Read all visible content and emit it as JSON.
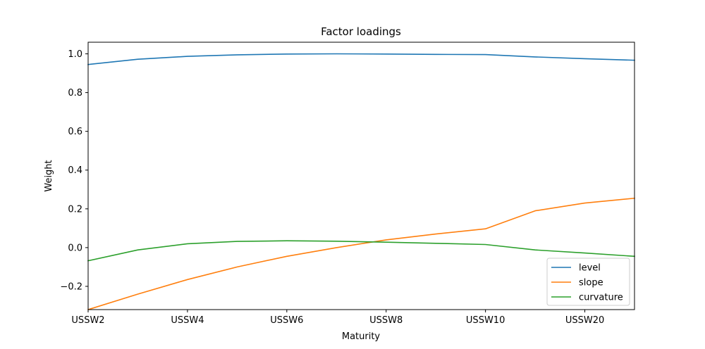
{
  "chart_data": {
    "type": "line",
    "title": "Factor loadings",
    "xlabel": "Maturity",
    "ylabel": "Weight",
    "x_ticklabels": [
      "USSW2",
      "USSW4",
      "USSW6",
      "USSW8",
      "USSW10",
      "USSW20"
    ],
    "y_ticklabels": [
      "−0.2",
      "0.0",
      "0.2",
      "0.4",
      "0.6",
      "0.8",
      "1.0"
    ],
    "y_ticks": [
      -0.2,
      0.0,
      0.2,
      0.4,
      0.6,
      0.8,
      1.0
    ],
    "ylim": [
      -0.32,
      1.06
    ],
    "x_tick_positions": [
      0,
      2,
      4,
      6,
      8,
      10
    ],
    "xlim": [
      0,
      11
    ],
    "grid": false,
    "legend": "lower-right",
    "x": [
      0,
      1,
      2,
      3,
      4,
      5,
      6,
      7,
      8,
      9,
      10,
      11
    ],
    "series": [
      {
        "name": "level",
        "color": "#1f77b4",
        "values": [
          0.945,
          0.972,
          0.987,
          0.995,
          0.999,
          1.0,
          0.999,
          0.997,
          0.996,
          0.984,
          0.975,
          0.967
        ]
      },
      {
        "name": "slope",
        "color": "#ff7f0e",
        "values": [
          -0.32,
          -0.24,
          -0.165,
          -0.1,
          -0.045,
          0.0,
          0.04,
          0.07,
          0.097,
          0.19,
          0.23,
          0.255
        ]
      },
      {
        "name": "curvature",
        "color": "#2ca02c",
        "values": [
          -0.068,
          -0.012,
          0.02,
          0.032,
          0.035,
          0.033,
          0.028,
          0.022,
          0.016,
          -0.012,
          -0.028,
          -0.045
        ]
      }
    ]
  }
}
